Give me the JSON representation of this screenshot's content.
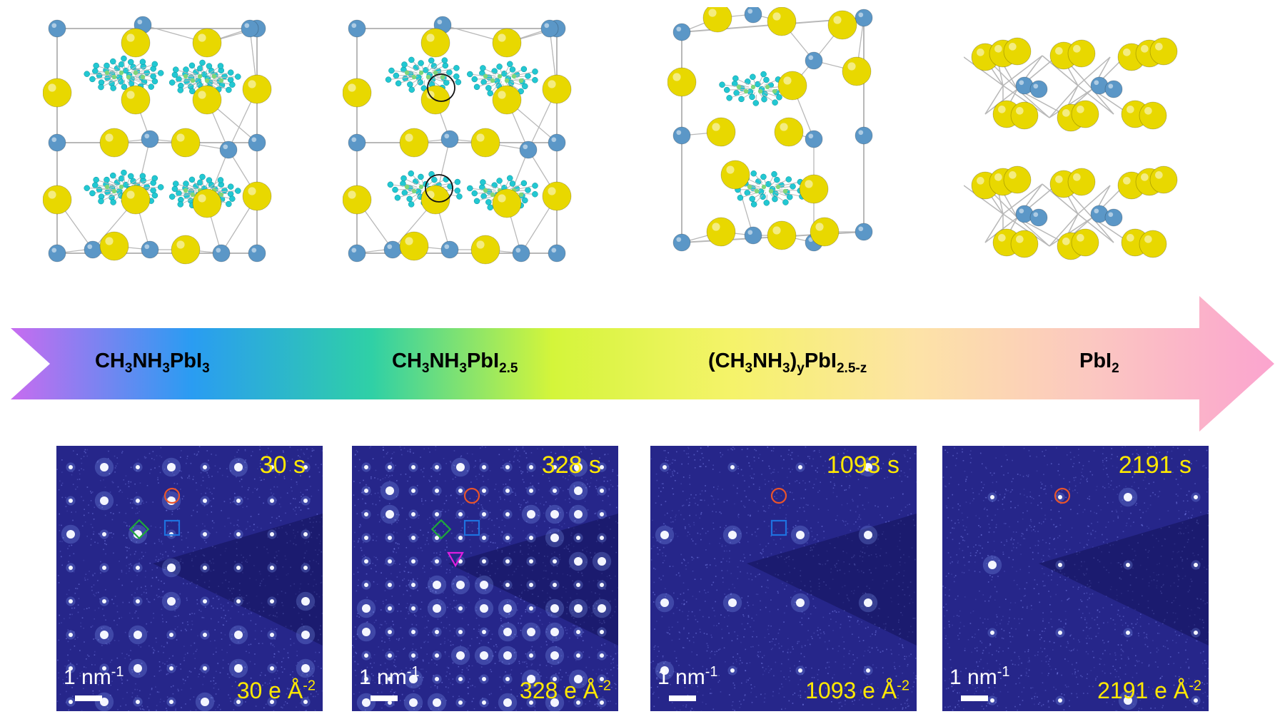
{
  "stages": [
    {
      "formula_main": "CH",
      "formula_parts": [
        "CH",
        "3",
        "NH",
        "3",
        "PbI",
        "3"
      ]
    },
    {
      "formula_parts": [
        "CH",
        "3",
        "NH",
        "3",
        "PbI",
        "2.5"
      ]
    },
    {
      "formula_parts": [
        "(CH",
        "3",
        "NH",
        "3",
        ")",
        "y",
        "PbI",
        "2.5-z"
      ]
    },
    {
      "formula_parts": [
        "PbI",
        "2"
      ]
    }
  ],
  "panels": [
    {
      "time": "30 s",
      "dose": "30 e Å",
      "dose_exp": "-2",
      "scale": "1 nm",
      "scale_exp": "-1"
    },
    {
      "time": "328 s",
      "dose": "328 e Å",
      "dose_exp": "-2",
      "scale": "1 nm",
      "scale_exp": "-1"
    },
    {
      "time": "1093 s",
      "dose": "1093 e Å",
      "dose_exp": "-2",
      "scale": "1 nm",
      "scale_exp": "-1"
    },
    {
      "time": "2191 s",
      "dose": "2191 e Å",
      "dose_exp": "-2",
      "scale": "1 nm",
      "scale_exp": "-1"
    }
  ],
  "colors": {
    "iodine": "#e8d800",
    "lead": "#5b97c7",
    "hydrogen": "#22c8d2",
    "panel_bg": "#26268a",
    "label_yellow": "#ffe800",
    "marker_orange": "#e8542b",
    "marker_green": "#1fa83a",
    "marker_blue": "#1e72e0",
    "marker_magenta": "#e01ee0"
  },
  "arrow_gradient": [
    "#c86cf0",
    "#2a9cf2",
    "#2fd0a6",
    "#d4f53a",
    "#f5f36a",
    "#fde3a6",
    "#fbc7c1",
    "#fba4cf"
  ]
}
